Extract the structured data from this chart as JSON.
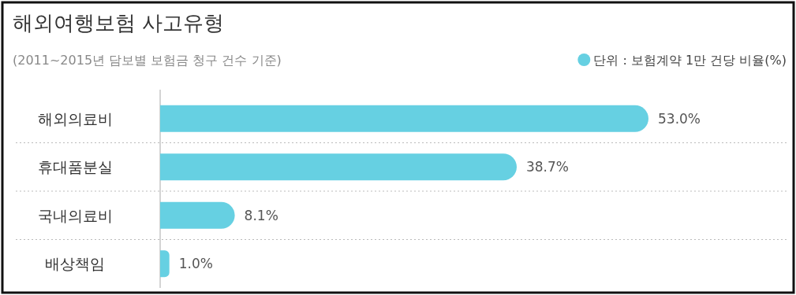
{
  "chart_data": {
    "type": "bar",
    "orientation": "horizontal",
    "title": "해외여행보험 사고유형",
    "subtitle": "(2011~2015년 담보별 보험금 청구 건수 기준)",
    "categories": [
      "해외의료비",
      "휴대품분실",
      "국내의료비",
      "배상책임"
    ],
    "series": [
      {
        "name": "단위 : 보험계약 1만 건당 비율(%)",
        "color": "#66d0e2",
        "values": [
          53.0,
          38.7,
          8.1,
          1.0
        ],
        "value_labels": [
          "53.0%",
          "38.7%",
          "8.1%",
          "1.0%"
        ]
      }
    ],
    "legend": "top right"
  }
}
